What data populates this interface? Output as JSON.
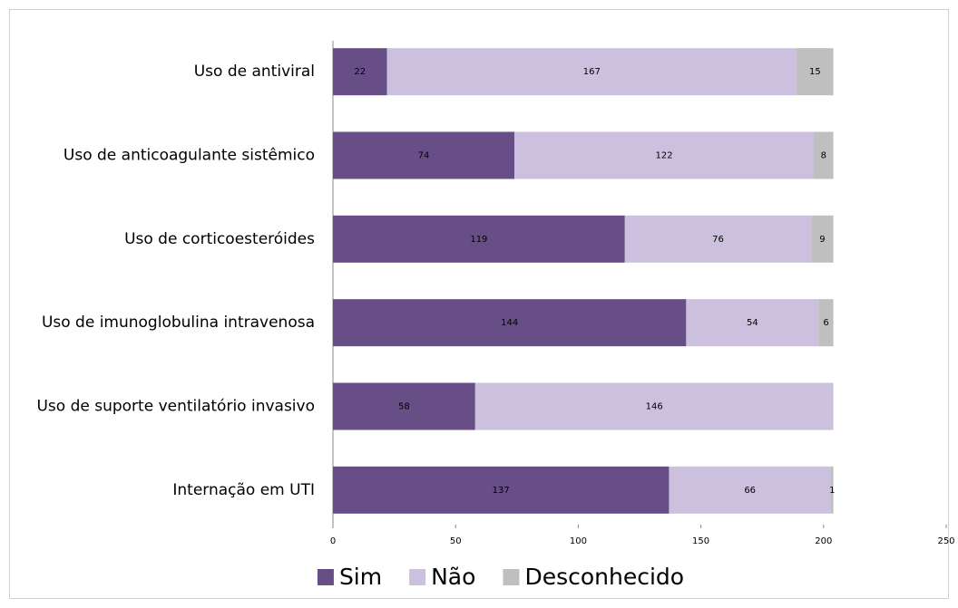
{
  "chart_data": {
    "type": "stacked-barh",
    "categories": [
      "Uso de antiviral",
      "Uso de anticoagulante sistêmico",
      "Uso de corticoesteróides",
      "Uso de imunoglobulina intravenosa",
      "Uso de suporte ventilatório invasivo",
      "Internação em UTI"
    ],
    "series": [
      {
        "name": "Sim",
        "color": "#684e86",
        "values": [
          22,
          74,
          119,
          144,
          58,
          137
        ]
      },
      {
        "name": "Não",
        "color": "#cbc0dd",
        "values": [
          167,
          122,
          76,
          54,
          146,
          66
        ]
      },
      {
        "name": "Desconhecido",
        "color": "#bfbfbf",
        "values": [
          15,
          8,
          9,
          6,
          null,
          1
        ]
      }
    ],
    "xlim": [
      0,
      250
    ],
    "xticks": [
      0,
      50,
      100,
      150,
      200,
      250
    ],
    "legend": "bottom"
  }
}
